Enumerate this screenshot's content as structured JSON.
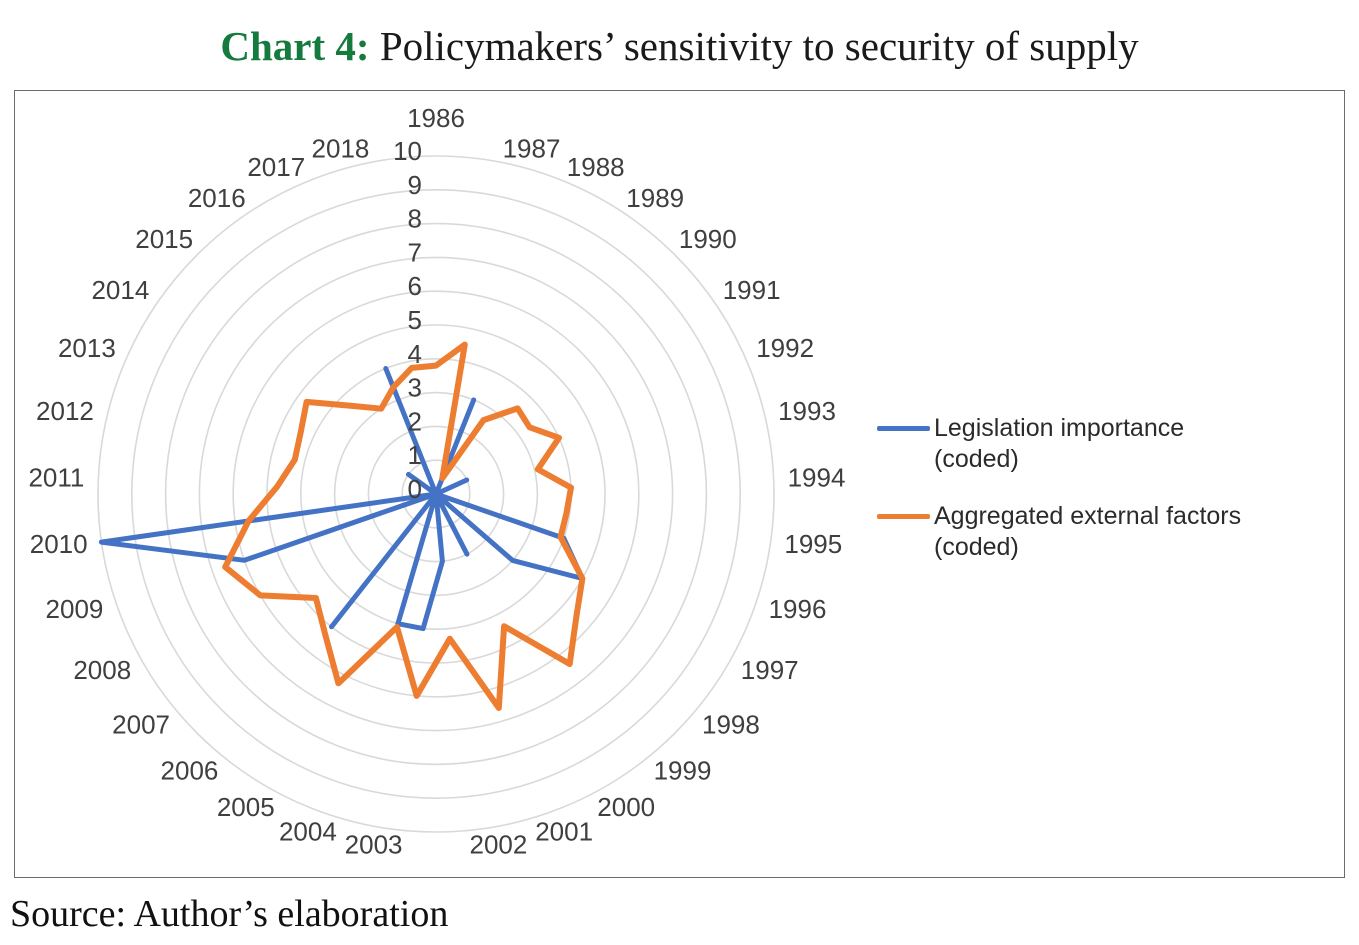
{
  "title": {
    "prefix": "Chart 4:",
    "text": " Policymakers’ sensitivity to security of supply",
    "accent_color": "#157A3E"
  },
  "source": "Source: Author’s elaboration",
  "legend": {
    "position": "right",
    "entries": [
      {
        "name": "Legislation importance (coded)",
        "line1": "Legislation importance",
        "line2": "(coded)",
        "color": "#4472C4"
      },
      {
        "name": "Aggregated external factors (coded)",
        "line1": "Aggregated external factors",
        "line2": "(coded)",
        "color": "#ED7D31"
      }
    ]
  },
  "chart_data": {
    "type": "radar",
    "title": "Policymakers’ sensitivity to security of supply",
    "grid": true,
    "grid_color": "#D9D9D9",
    "label_color": "#3F3F3F",
    "r_axis": {
      "min": 0,
      "max": 10,
      "step": 1
    },
    "r_ticks": [
      "0",
      "1",
      "2",
      "3",
      "4",
      "5",
      "6",
      "7",
      "8",
      "9",
      "10"
    ],
    "categories": [
      "1986",
      "1987",
      "1988",
      "1989",
      "1990",
      "1991",
      "1992",
      "1993",
      "1994",
      "1995",
      "1996",
      "1997",
      "1998",
      "1999",
      "2000",
      "2001",
      "2002",
      "2003",
      "2004",
      "2005",
      "2006",
      "2007",
      "2008",
      "2009",
      "2010",
      "2011",
      "2012",
      "2013",
      "2014",
      "2015",
      "2016",
      "2017",
      "2018"
    ],
    "series": [
      {
        "name": "Legislation importance (coded)",
        "color": "#4472C4",
        "stroke_width": 5,
        "values": [
          0,
          0,
          3,
          0,
          0,
          0,
          1,
          0,
          0,
          0,
          4,
          5,
          3,
          0,
          2,
          0,
          2,
          4,
          4,
          0,
          5,
          0,
          0,
          6,
          10,
          0,
          0,
          0,
          1,
          0,
          0,
          4,
          0
        ]
      },
      {
        "name": "Aggregated external factors (coded)",
        "color": "#ED7D31",
        "stroke_width": 6,
        "values": [
          3.8,
          4.5,
          0.5,
          2.6,
          3.5,
          3.4,
          4,
          3.1,
          4,
          3.9,
          3.9,
          5,
          5.5,
          6.4,
          4.4,
          6.6,
          4.3,
          6,
          4.1,
          6.3,
          5.3,
          4.7,
          6,
          6.6,
          5.6,
          4.7,
          4.3,
          4.4,
          4.7,
          3.6,
          3,
          3.4,
          3.8
        ]
      }
    ]
  }
}
